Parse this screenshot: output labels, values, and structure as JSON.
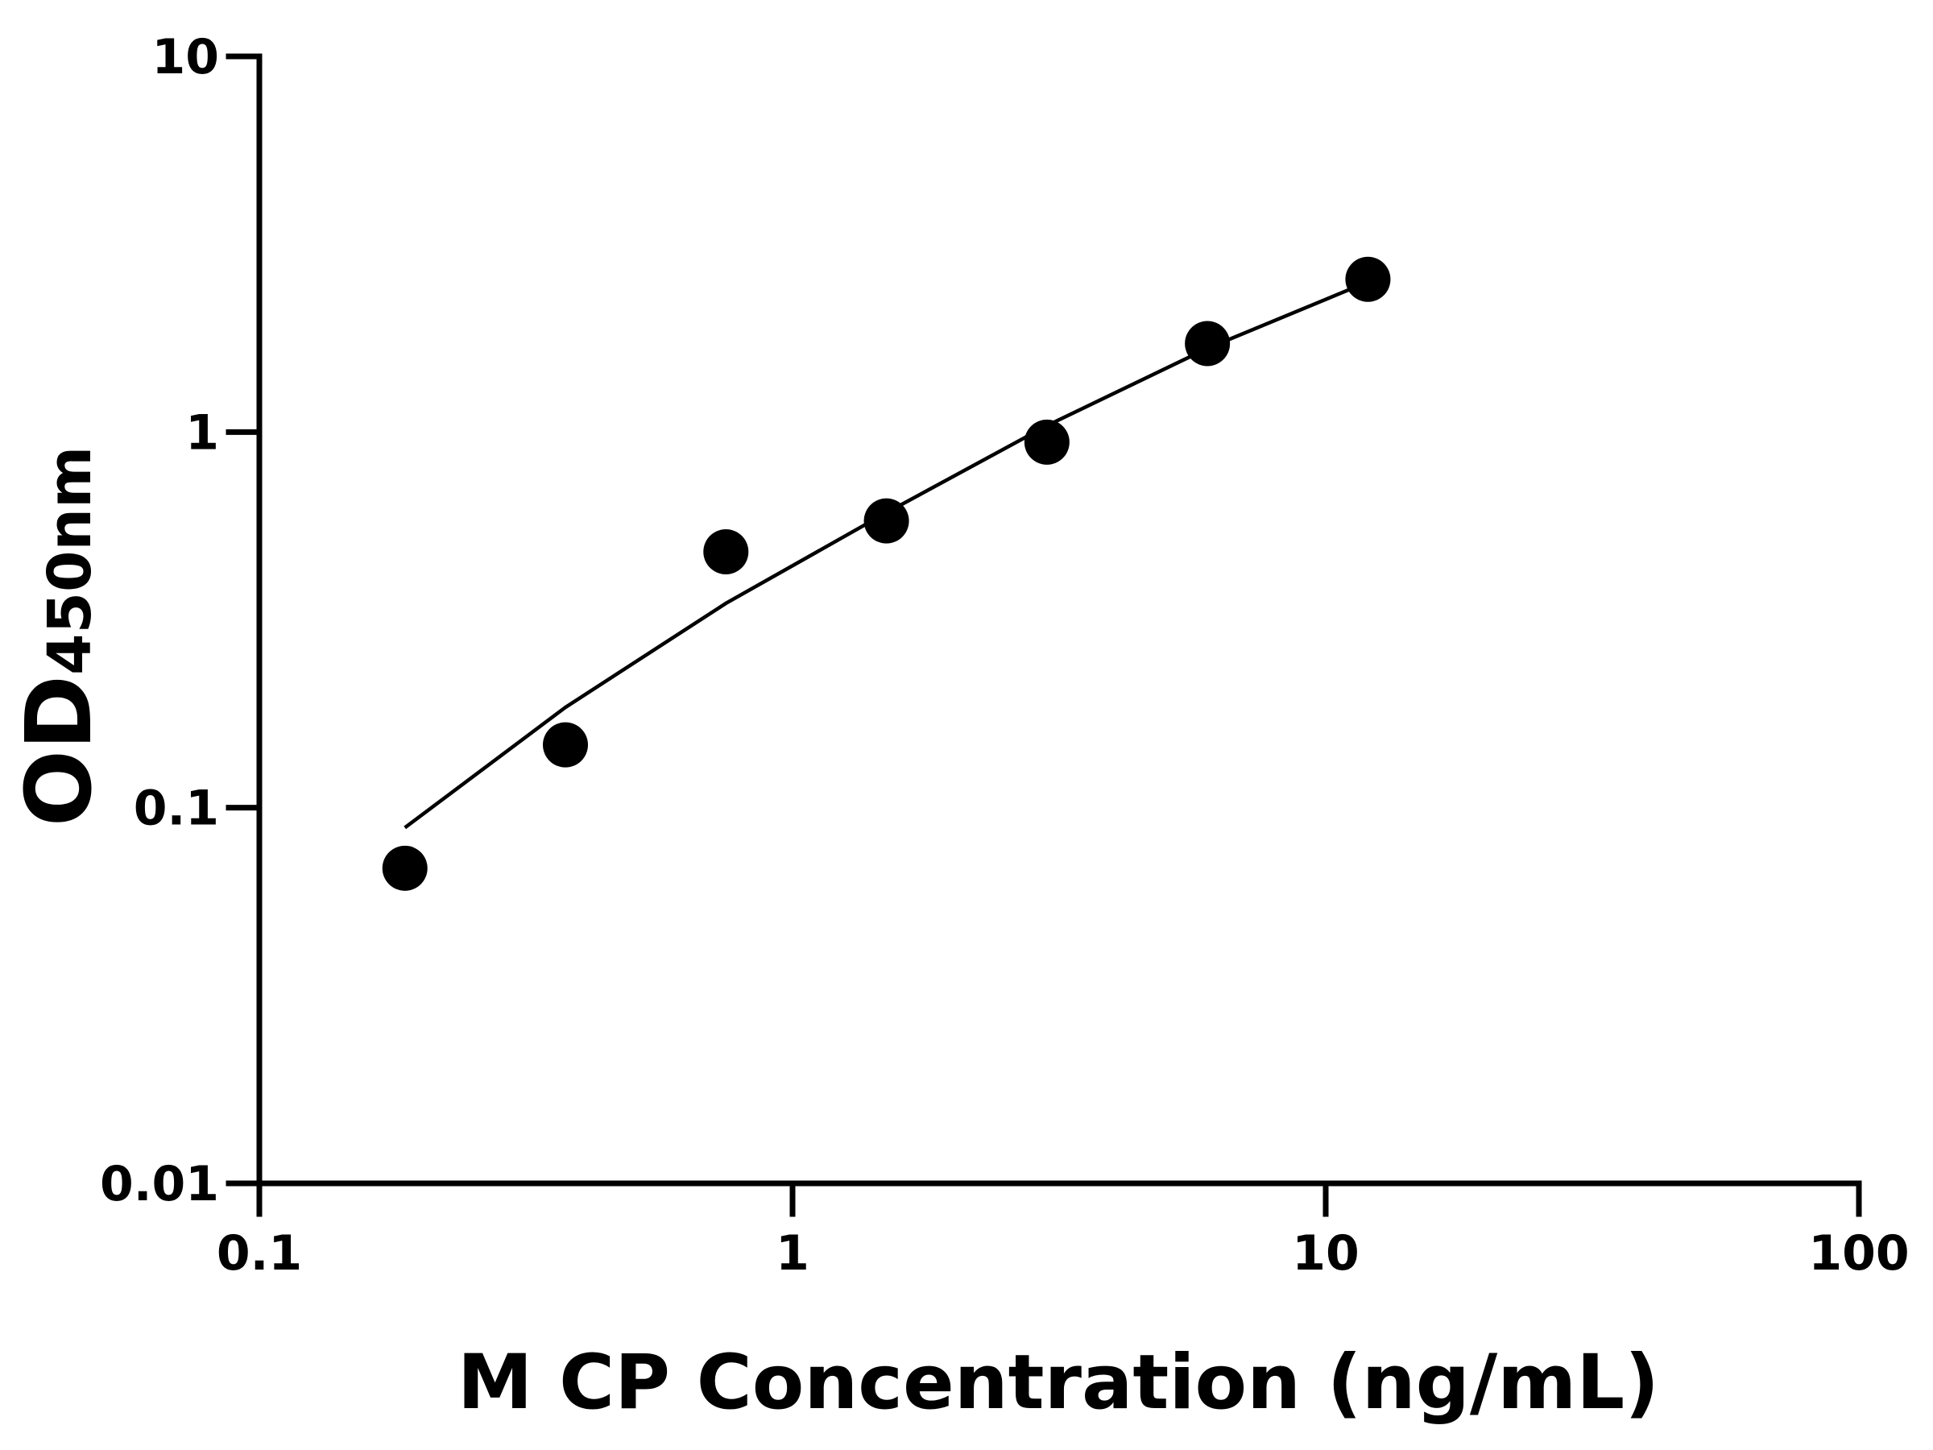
{
  "chart_data": {
    "type": "scatter",
    "xlabel": "M CP Concentration (ng/mL)",
    "ylabel": "OD",
    "ylabel_sub": "450nm",
    "log_x": true,
    "log_y": true,
    "xlim": [
      0.1,
      100
    ],
    "xticks": [
      0.1,
      1,
      10,
      100
    ],
    "ylim": [
      0.01,
      10
    ],
    "yticks": [
      0.01,
      0.1,
      1,
      10
    ],
    "series": [
      {
        "color": "#000000",
        "x": [
          0.1875,
          0.375,
          0.75,
          1.5,
          3,
          6,
          12
        ],
        "values": [
          0.069,
          0.147,
          0.48,
          0.58,
          0.94,
          1.72,
          2.55
        ]
      }
    ],
    "fit": {
      "color": "#000000",
      "x": [
        0.1875,
        0.375,
        0.75,
        1.5,
        3,
        6,
        12
      ],
      "values": [
        0.0885,
        0.185,
        0.35,
        0.61,
        1.04,
        1.67,
        2.51
      ]
    }
  }
}
